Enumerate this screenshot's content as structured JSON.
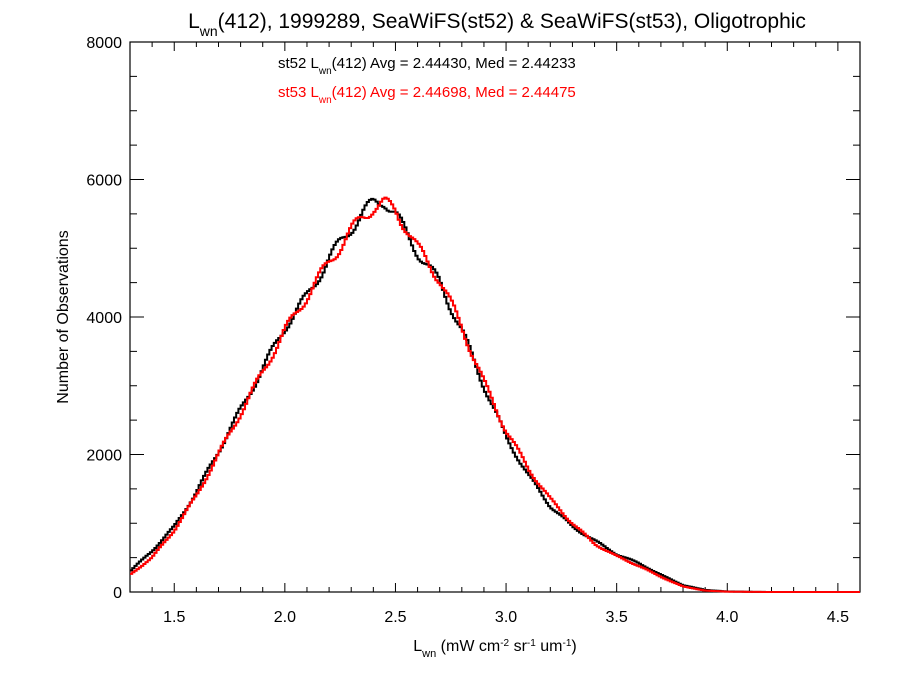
{
  "chart_data": {
    "type": "line",
    "step": true,
    "title": {
      "prefix": "L",
      "sub": "wn",
      "suffix": "(412), 1999289, SeaWiFS(st52) & SeaWiFS(st53), Oligotrophic"
    },
    "xlabel": {
      "prefix": "L",
      "sub": "wn",
      "p1": " (mW cm",
      "sup1": "-2",
      "p2": " sr",
      "sup2": "-1",
      "p3": " um",
      "sup3": "-1",
      "p4": ")"
    },
    "ylabel": "Number of Observations",
    "xlim": [
      1.3,
      4.6
    ],
    "ylim": [
      0,
      8000
    ],
    "x_ticks": [
      "1.5",
      "2.0",
      "2.5",
      "3.0",
      "3.5",
      "4.0",
      "4.5"
    ],
    "y_ticks": [
      "0",
      "2000",
      "4000",
      "6000",
      "8000"
    ],
    "grid": false,
    "series": [
      {
        "name": "st52",
        "color": "#000000",
        "annotation": {
          "prefix": "st52 L",
          "sub": "wn",
          "suffix": "(412) Avg = 2.44430, Med = 2.44233"
        },
        "x": [
          1.3,
          1.4,
          1.5,
          1.6,
          1.7,
          1.8,
          1.9,
          2.0,
          2.1,
          2.2,
          2.3,
          2.35,
          2.4,
          2.45,
          2.5,
          2.55,
          2.6,
          2.7,
          2.8,
          2.9,
          3.0,
          3.1,
          3.2,
          3.3,
          3.4,
          3.5,
          3.6,
          3.7,
          3.8,
          3.9,
          4.0,
          4.1,
          4.2,
          4.3,
          4.4,
          4.5,
          4.6
        ],
        "y": [
          300,
          600,
          950,
          1450,
          2050,
          2650,
          3250,
          3850,
          4300,
          4850,
          5300,
          5500,
          5650,
          5700,
          5500,
          5200,
          4950,
          4500,
          3800,
          3000,
          2250,
          1700,
          1250,
          950,
          750,
          550,
          420,
          250,
          100,
          30,
          8,
          3,
          0,
          0,
          0,
          0,
          0
        ]
      },
      {
        "name": "st53",
        "color": "#ff0000",
        "annotation": {
          "prefix": "st53 L",
          "sub": "wn",
          "suffix": "(412) Avg = 2.44698, Med = 2.44475"
        },
        "x": [
          1.3,
          1.4,
          1.5,
          1.6,
          1.7,
          1.8,
          1.9,
          2.0,
          2.1,
          2.2,
          2.3,
          2.35,
          2.4,
          2.45,
          2.5,
          2.55,
          2.6,
          2.7,
          2.8,
          2.9,
          3.0,
          3.1,
          3.2,
          3.3,
          3.4,
          3.5,
          3.6,
          3.7,
          3.8,
          3.9,
          4.0,
          4.1,
          4.2,
          4.3,
          4.4,
          4.5,
          4.6
        ],
        "y": [
          250,
          500,
          900,
          1400,
          2000,
          2600,
          3200,
          3800,
          4300,
          4800,
          5250,
          5450,
          5600,
          5650,
          5550,
          5300,
          5000,
          4550,
          3850,
          3050,
          2350,
          1800,
          1350,
          1000,
          700,
          520,
          380,
          220,
          80,
          20,
          5,
          2,
          0,
          0,
          0,
          0,
          0
        ]
      }
    ]
  }
}
